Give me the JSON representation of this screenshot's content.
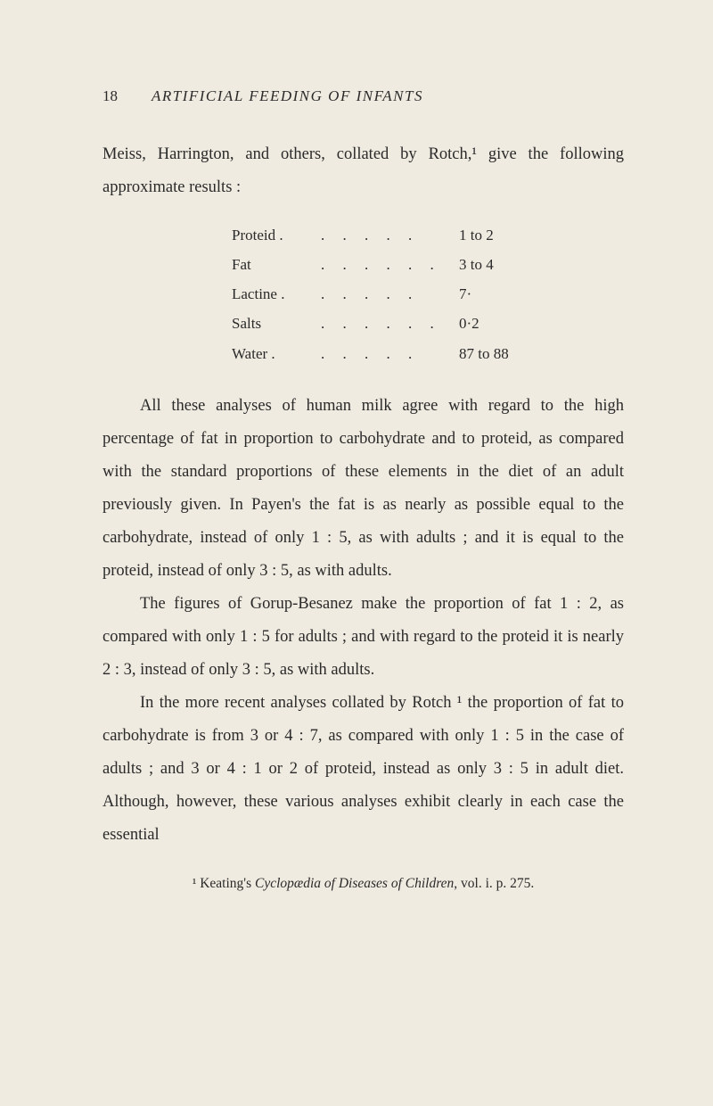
{
  "page": {
    "number": "18",
    "running_header": "ARTIFICIAL FEEDING OF INFANTS"
  },
  "intro": {
    "text": "Meiss, Harrington, and others, collated by Rotch,¹ give the following approximate results :"
  },
  "table": {
    "rows": [
      {
        "label": "Proteid .",
        "dots": ". . . . .",
        "value": "1 to 2"
      },
      {
        "label": "Fat",
        "dots": ". . . . . .",
        "value": "3 to 4"
      },
      {
        "label": "Lactine .",
        "dots": ". . . . .",
        "value": "7·"
      },
      {
        "label": "Salts",
        "dots": ". . . . . .",
        "value": "0·2"
      },
      {
        "label": "Water .",
        "dots": ". . . . .",
        "value": "87 to 88"
      }
    ]
  },
  "body": {
    "p2": "All these analyses of human milk agree with regard to the high percentage of fat in proportion to carbohydrate and to proteid, as compared with the standard proportions of these elements in the diet of an adult previously given. In Payen's the fat is as nearly as possible equal to the carbohydrate, instead of only 1 : 5, as with adults ; and it is equal to the proteid, instead of only 3 : 5, as with adults.",
    "p3": "The figures of Gorup-Besanez make the proportion of fat 1 : 2, as compared with only 1 : 5 for adults ; and with regard to the proteid it is nearly 2 : 3, instead of only 3 : 5, as with adults.",
    "p4": "In the more recent analyses collated by Rotch ¹ the proportion of fat to carbohydrate is from 3 or 4 : 7, as compared with only 1 : 5 in the case of adults ; and 3 or 4 : 1 or 2 of proteid, instead as only 3 : 5 in adult diet. Although, however, these various analyses exhibit clearly in each case the essential"
  },
  "footnote": {
    "marker": "¹",
    "author": "Keating's ",
    "title": "Cyclopædia of Diseases of Children",
    "citation": ", vol. i. p. 275."
  }
}
